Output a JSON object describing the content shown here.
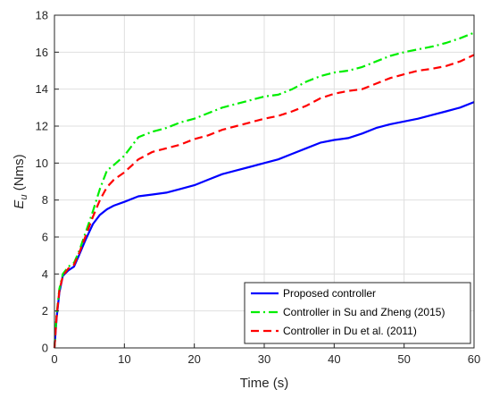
{
  "chart_data": {
    "type": "line",
    "xlabel": "Time (s)",
    "ylabel": {
      "main": "E",
      "sub": "u",
      "unit": " (Nms)"
    },
    "xlim": [
      0,
      60
    ],
    "ylim": [
      0,
      18
    ],
    "xticks": [
      0,
      10,
      20,
      30,
      40,
      50,
      60
    ],
    "yticks": [
      0,
      2,
      4,
      6,
      8,
      10,
      12,
      14,
      16,
      18
    ],
    "grid": true,
    "legend_position": "bottom-right",
    "series": [
      {
        "name": "Proposed controller",
        "color": "#0000ff",
        "dash": "solid",
        "points": [
          [
            0,
            0
          ],
          [
            0.3,
            1.6
          ],
          [
            0.7,
            3.0
          ],
          [
            1.2,
            3.9
          ],
          [
            2,
            4.2
          ],
          [
            2.8,
            4.4
          ],
          [
            3.5,
            5.0
          ],
          [
            4.5,
            5.9
          ],
          [
            5.5,
            6.7
          ],
          [
            6.5,
            7.2
          ],
          [
            7.5,
            7.5
          ],
          [
            8.5,
            7.7
          ],
          [
            10,
            7.9
          ],
          [
            12,
            8.2
          ],
          [
            14,
            8.3
          ],
          [
            16,
            8.4
          ],
          [
            18,
            8.6
          ],
          [
            20,
            8.8
          ],
          [
            22,
            9.1
          ],
          [
            24,
            9.4
          ],
          [
            26,
            9.6
          ],
          [
            28,
            9.8
          ],
          [
            30,
            10.0
          ],
          [
            32,
            10.2
          ],
          [
            34,
            10.5
          ],
          [
            36,
            10.8
          ],
          [
            38,
            11.1
          ],
          [
            40,
            11.25
          ],
          [
            42,
            11.35
          ],
          [
            44,
            11.6
          ],
          [
            46,
            11.9
          ],
          [
            48,
            12.1
          ],
          [
            50,
            12.25
          ],
          [
            52,
            12.4
          ],
          [
            54,
            12.6
          ],
          [
            56,
            12.8
          ],
          [
            58,
            13.0
          ],
          [
            60,
            13.3
          ]
        ]
      },
      {
        "name": "Controller in Su and Zheng (2015)",
        "color": "#00ee00",
        "dash": "dashdot",
        "points": [
          [
            0,
            0
          ],
          [
            0.3,
            1.8
          ],
          [
            0.7,
            3.2
          ],
          [
            1.2,
            4.0
          ],
          [
            2,
            4.4
          ],
          [
            2.8,
            4.6
          ],
          [
            3.5,
            5.2
          ],
          [
            4.5,
            6.3
          ],
          [
            5.5,
            7.4
          ],
          [
            6.5,
            8.6
          ],
          [
            7.5,
            9.6
          ],
          [
            8.5,
            9.9
          ],
          [
            10,
            10.4
          ],
          [
            11,
            10.9
          ],
          [
            12,
            11.4
          ],
          [
            14,
            11.7
          ],
          [
            16,
            11.9
          ],
          [
            18,
            12.2
          ],
          [
            20,
            12.4
          ],
          [
            22,
            12.7
          ],
          [
            24,
            13.0
          ],
          [
            26,
            13.2
          ],
          [
            28,
            13.4
          ],
          [
            30,
            13.6
          ],
          [
            32,
            13.7
          ],
          [
            34,
            14.0
          ],
          [
            36,
            14.4
          ],
          [
            38,
            14.7
          ],
          [
            40,
            14.9
          ],
          [
            42,
            15.0
          ],
          [
            44,
            15.2
          ],
          [
            46,
            15.5
          ],
          [
            48,
            15.8
          ],
          [
            50,
            16.0
          ],
          [
            52,
            16.15
          ],
          [
            54,
            16.3
          ],
          [
            56,
            16.5
          ],
          [
            58,
            16.75
          ],
          [
            60,
            17.05
          ]
        ]
      },
      {
        "name": "Controller in Du et al. (2011)",
        "color": "#ff0000",
        "dash": "dashed",
        "points": [
          [
            0,
            0
          ],
          [
            0.3,
            1.7
          ],
          [
            0.7,
            3.1
          ],
          [
            1.2,
            3.9
          ],
          [
            2,
            4.3
          ],
          [
            2.8,
            4.5
          ],
          [
            3.5,
            5.1
          ],
          [
            4.5,
            6.1
          ],
          [
            5.5,
            7.1
          ],
          [
            6.5,
            8.0
          ],
          [
            7.5,
            8.7
          ],
          [
            8.5,
            9.1
          ],
          [
            10,
            9.5
          ],
          [
            12,
            10.2
          ],
          [
            14,
            10.6
          ],
          [
            16,
            10.8
          ],
          [
            18,
            11.0
          ],
          [
            20,
            11.3
          ],
          [
            22,
            11.5
          ],
          [
            24,
            11.8
          ],
          [
            26,
            12.0
          ],
          [
            28,
            12.2
          ],
          [
            30,
            12.4
          ],
          [
            32,
            12.55
          ],
          [
            34,
            12.8
          ],
          [
            36,
            13.1
          ],
          [
            38,
            13.5
          ],
          [
            40,
            13.75
          ],
          [
            42,
            13.9
          ],
          [
            44,
            14.0
          ],
          [
            46,
            14.3
          ],
          [
            48,
            14.6
          ],
          [
            50,
            14.8
          ],
          [
            52,
            15.0
          ],
          [
            54,
            15.1
          ],
          [
            56,
            15.25
          ],
          [
            58,
            15.5
          ],
          [
            60,
            15.85
          ]
        ]
      }
    ]
  }
}
